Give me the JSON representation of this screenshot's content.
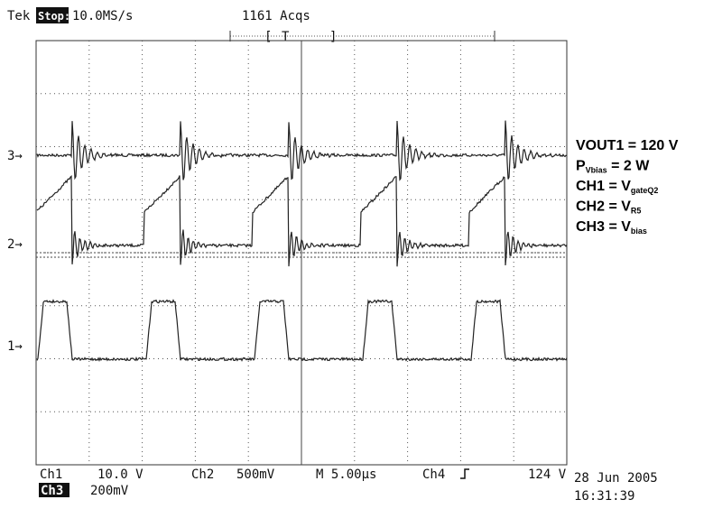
{
  "header": {
    "brand": "Tek",
    "state": "Stop:",
    "sample_rate": "10.0MS/s",
    "acquisitions": "1161 Acqs",
    "trigger_marker": "T"
  },
  "channel_markers": [
    "3→",
    "2→",
    "1→"
  ],
  "footer": {
    "ch1_label": "Ch1",
    "ch1_scale": "10.0 V",
    "ch2_label": "Ch2",
    "ch2_scale": "500mV",
    "timebase": "M 5.00µs",
    "ch4_label": "Ch4",
    "trigger_level": "124 V",
    "ch3_label": "Ch3",
    "ch3_scale": "200mV",
    "date": "28 Jun 2005",
    "time": "16:31:39"
  },
  "annotations": [
    {
      "main": "VOUT1 = 120 V"
    },
    {
      "main": "P",
      "sub": "Vbias",
      "rest": " = 2 W"
    },
    {
      "main": "CH1 = V",
      "sub": "gateQ2"
    },
    {
      "main": "CH2 = V",
      "sub": "R5"
    },
    {
      "main": "CH3 = V",
      "sub": "bias"
    }
  ]
}
